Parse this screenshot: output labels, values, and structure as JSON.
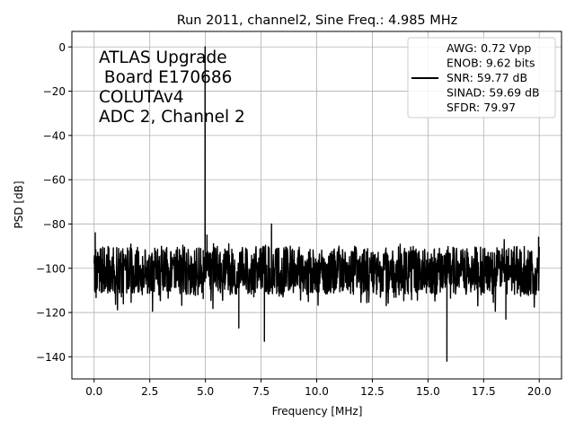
{
  "chart_data": {
    "type": "line",
    "title": "Run 2011, channel2, Sine Freq.: 4.985 MHz",
    "xlabel": "Frequency [MHz]",
    "ylabel": "PSD [dB]",
    "xlim": [
      -1.0,
      21.0
    ],
    "ylim": [
      -150,
      7
    ],
    "xticks": [
      0.0,
      2.5,
      5.0,
      7.5,
      10.0,
      12.5,
      15.0,
      17.5,
      20.0
    ],
    "xtick_labels": [
      "0.0",
      "2.5",
      "5.0",
      "7.5",
      "10.0",
      "12.5",
      "15.0",
      "17.5",
      "20.0"
    ],
    "yticks": [
      0,
      -20,
      -40,
      -60,
      -80,
      -100,
      -120,
      -140
    ],
    "ytick_labels": [
      "0",
      "−20",
      "−40",
      "−60",
      "−80",
      "−100",
      "−120",
      "−140"
    ],
    "grid": true,
    "legend_position": "top-right",
    "annotation_lines": [
      "ATLAS Upgrade",
      " Board E170686",
      "COLUTAv4",
      "ADC 2, Channel 2"
    ],
    "legend_lines": [
      "AWG: 0.72 Vpp",
      "ENOB: 9.62 bits",
      "SNR: 59.77 dB",
      "SINAD: 59.69 dB",
      "SFDR: 79.97"
    ],
    "series": [
      {
        "color": "#000000",
        "noise_floor_db": -101,
        "noise_band_db": [
          -112,
          -90
        ],
        "x": [
          0.0,
          0.05,
          0.5,
          1.0,
          2.0,
          3.0,
          4.0,
          4.6,
          4.9,
          4.985,
          5.07,
          5.4,
          6.0,
          6.5,
          7.0,
          7.65,
          7.97,
          8.3,
          9.0,
          10.0,
          11.0,
          12.0,
          13.0,
          14.0,
          15.0,
          15.5,
          15.85,
          16.2,
          17.0,
          18.0,
          18.5,
          19.0,
          19.97,
          20.0
        ],
        "y": [
          -100,
          -84,
          -103,
          -99,
          -100,
          -101,
          -100,
          -99,
          -92,
          0,
          -85,
          -102,
          -100,
          -127,
          -101,
          -133,
          -80,
          -101,
          -100,
          -101,
          -100,
          -101,
          -100,
          -101,
          -100,
          -101,
          -142,
          -100,
          -101,
          -100,
          -123,
          -101,
          -86,
          -100
        ]
      }
    ]
  }
}
